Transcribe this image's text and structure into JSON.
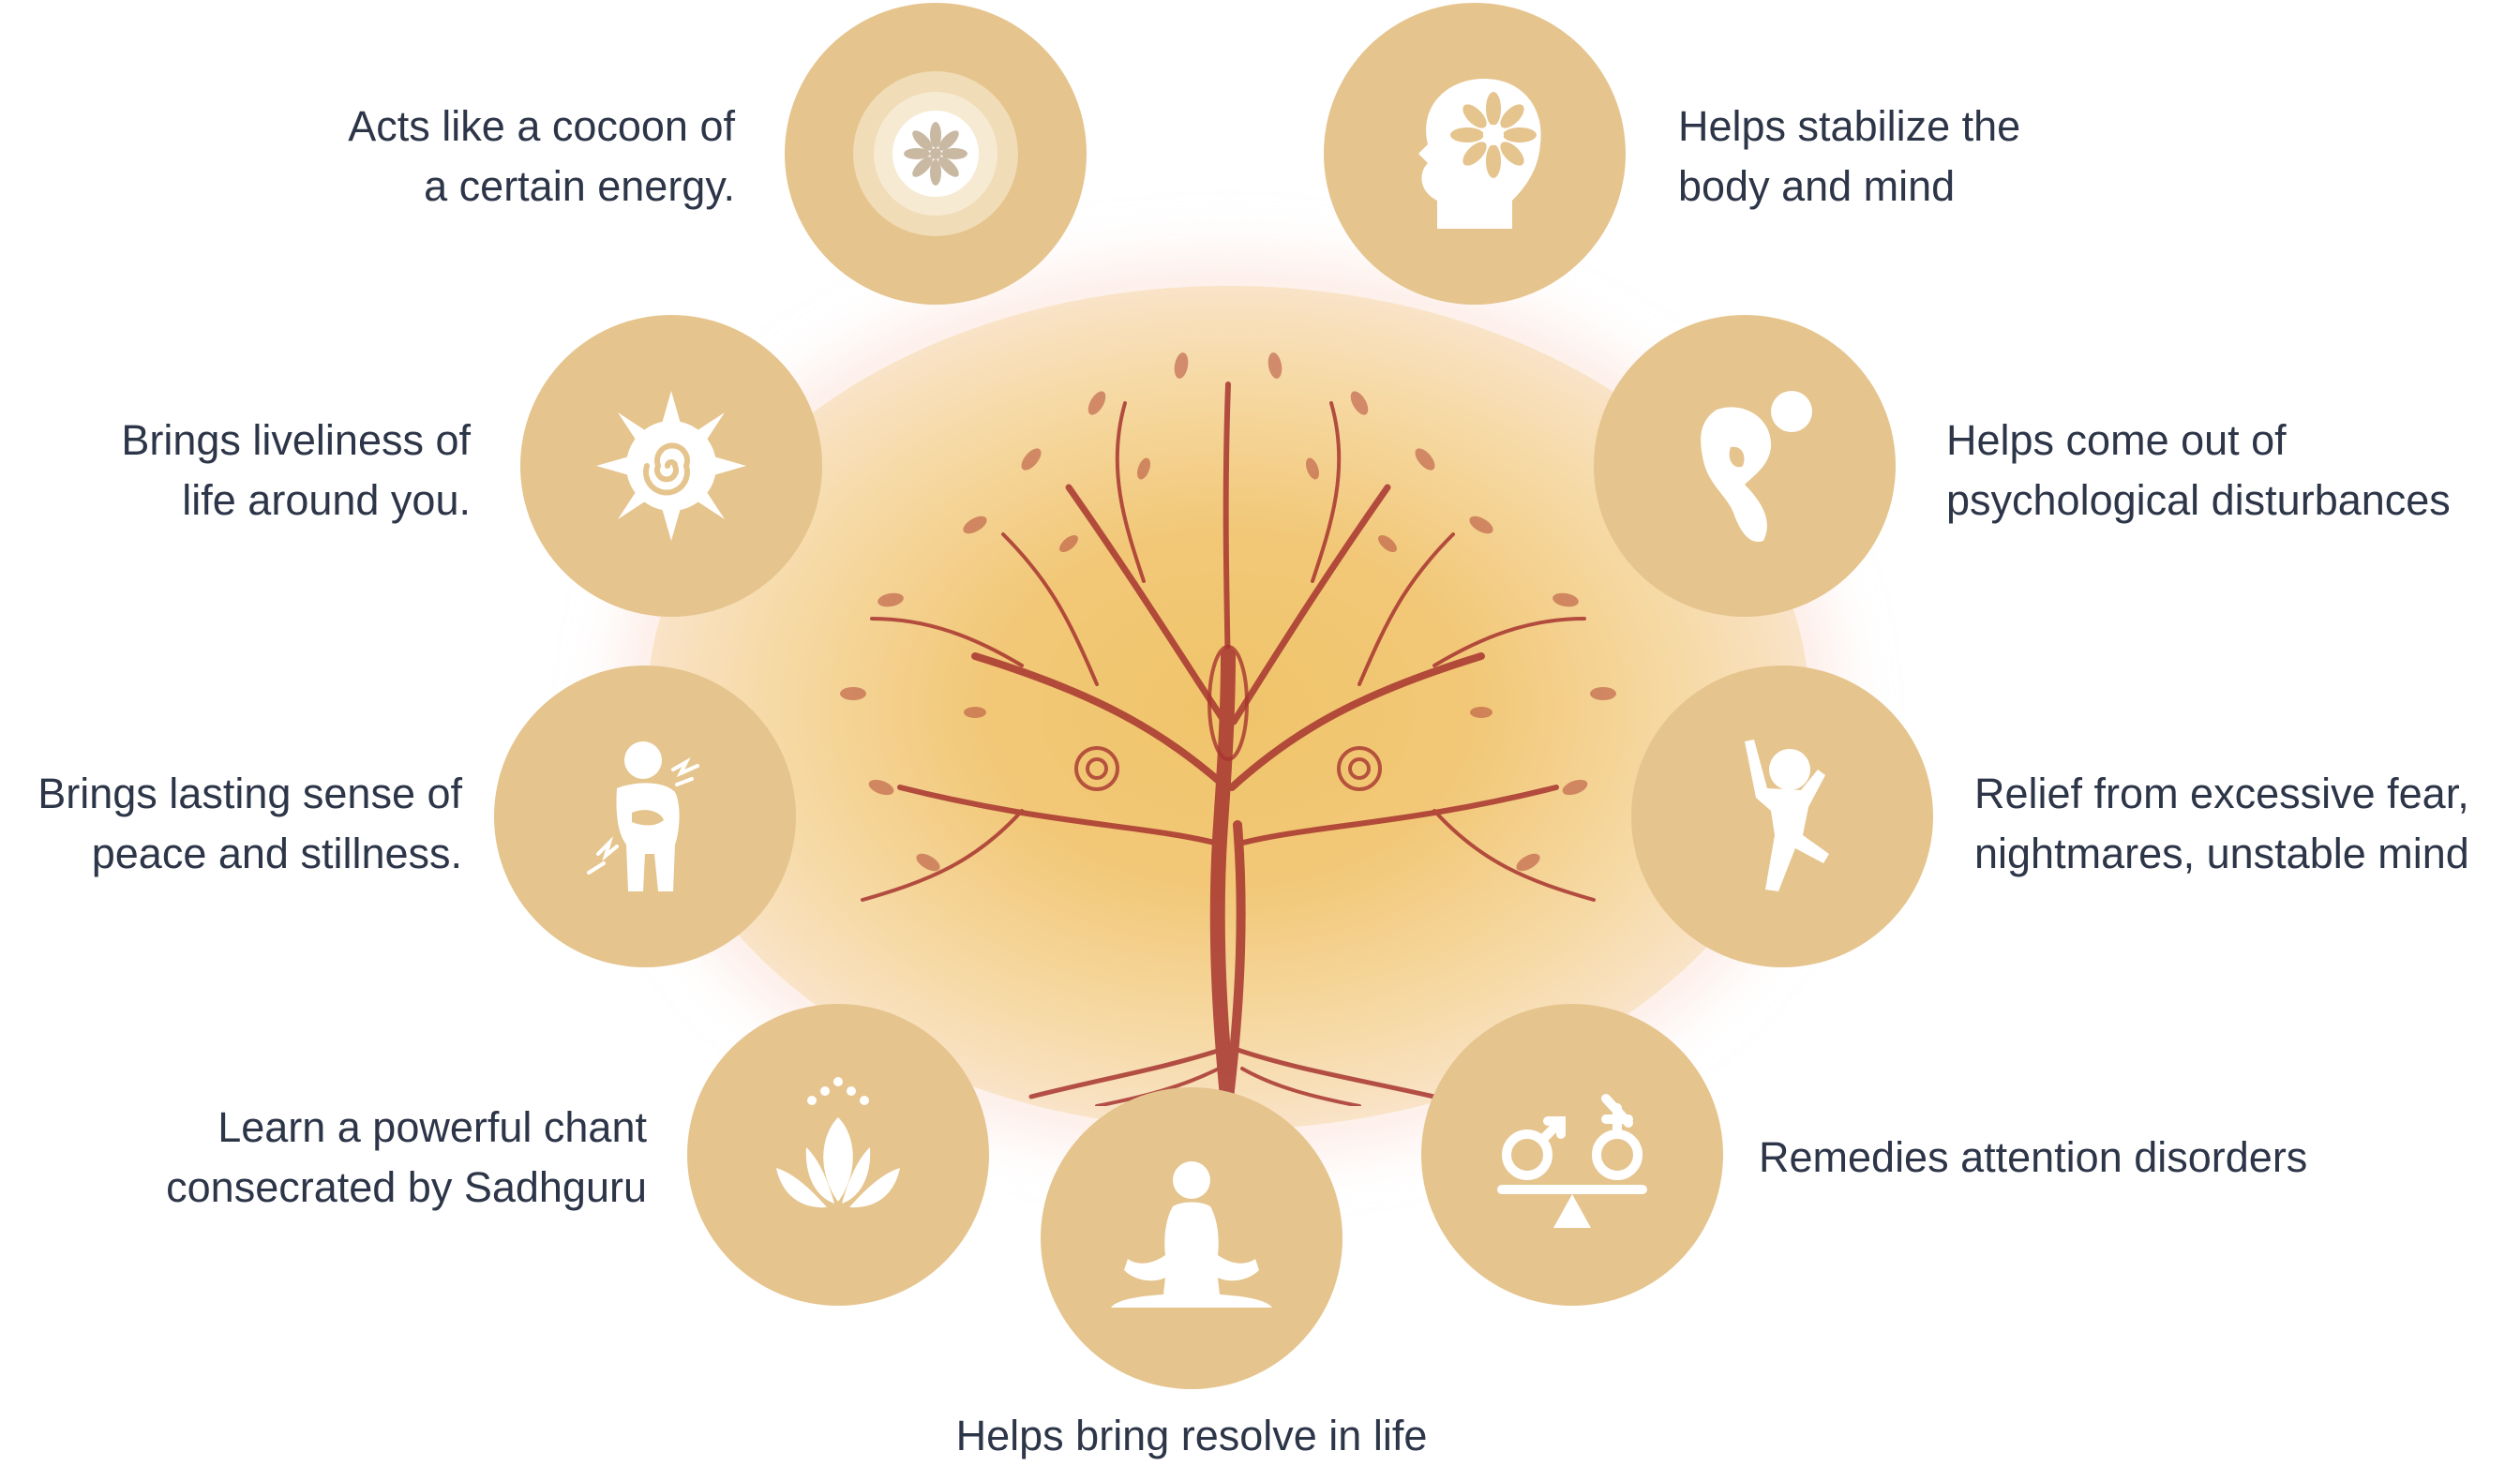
{
  "benefits": [
    {
      "icon": "energy-cocoon-icon",
      "lines": [
        "Acts like a cocoon of",
        "a certain energy."
      ]
    },
    {
      "icon": "head-flower-icon",
      "lines": [
        "Helps stabilize the",
        "body and mind"
      ]
    },
    {
      "icon": "sun-spiral-icon",
      "lines": [
        "Brings liveliness of",
        "life around you."
      ]
    },
    {
      "icon": "bent-figure-icon",
      "lines": [
        "Helps come out of",
        "psychological disturbances"
      ]
    },
    {
      "icon": "pain-figure-icon",
      "lines": [
        "Brings lasting sense of",
        "peace and stillness."
      ]
    },
    {
      "icon": "jumping-figure-icon",
      "lines": [
        "Relief from excessive fear,",
        "nightmares, unstable mind"
      ]
    },
    {
      "icon": "lotus-icon",
      "lines": [
        "Learn a powerful chant",
        "consecrated by Sadhguru"
      ]
    },
    {
      "icon": "gender-balance-icon",
      "lines": [
        "Remedies attention disorders"
      ]
    },
    {
      "icon": "meditation-icon",
      "lines": [
        "Helps bring resolve in life"
      ]
    }
  ],
  "colors": {
    "circle": "#e5c48d",
    "icon": "#ffffff",
    "text": "#2d3548",
    "tree": "#a4302a"
  }
}
